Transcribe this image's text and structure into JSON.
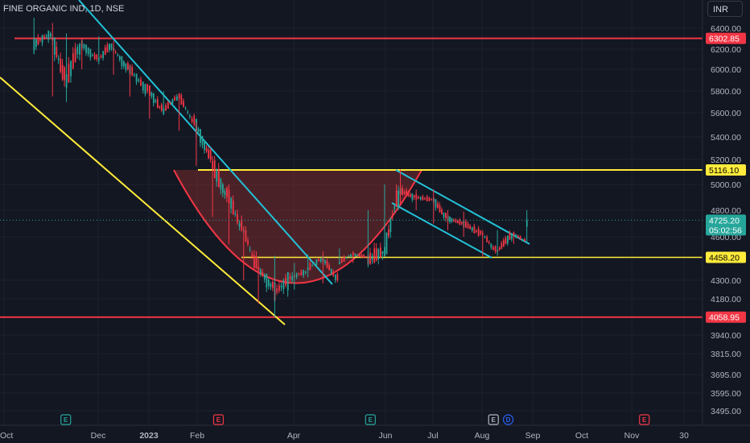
{
  "header": {
    "symbol": "FINE ORGANIC IND, 1D, NSE",
    "currency": "INR"
  },
  "colors": {
    "background": "#131722",
    "up_candle": "#26a69a",
    "down_candle": "#f23645",
    "red_line": "#f23645",
    "yellow_line": "#ffeb3b",
    "cyan_line": "#22c1d6",
    "cup_fill": "#7a2a2e",
    "current_price": "#26a69a"
  },
  "chart_data": {
    "type": "candlestick",
    "y_axis": {
      "scale": "log",
      "ticks": [
        "6400.00",
        "6200.00",
        "6000.00",
        "5800.00",
        "5600.00",
        "5400.00",
        "5200.00",
        "5000.00",
        "4800.00",
        "4600.00",
        "4300.00",
        "4180.00",
        "3940.00",
        "3815.00",
        "3695.00",
        "3595.00",
        "3495.00"
      ]
    },
    "x_axis": {
      "ticks": [
        "Oct",
        "Dec",
        "2023",
        "Feb",
        "Apr",
        "Jun",
        "Jul",
        "Aug",
        "Sep",
        "Oct",
        "Nov",
        "30"
      ],
      "bold": [
        "2023"
      ]
    },
    "price_tags": [
      {
        "label": "6302.85",
        "value": 6302.85,
        "color": "#f23645"
      },
      {
        "label": "5116.10",
        "value": 5116.1,
        "color": "#ffeb3b"
      },
      {
        "label": "4458.20",
        "value": 4458.2,
        "color": "#ffeb3b"
      },
      {
        "label": "4058.95",
        "value": 4058.95,
        "color": "#f23645"
      }
    ],
    "current_price": {
      "price": "4725.20",
      "countdown": "05:02:56",
      "value": 4725.2
    },
    "events": [
      {
        "label": "E",
        "type": "earnings-up",
        "date": "2022-11-10"
      },
      {
        "label": "E",
        "type": "earnings-down",
        "date": "2023-02-14"
      },
      {
        "label": "E",
        "type": "earnings-up",
        "date": "2023-05-22"
      },
      {
        "label": "E",
        "type": "earnings-neutral",
        "date": "2023-08-08"
      },
      {
        "label": "D",
        "type": "dividend",
        "date": "2023-08-17"
      },
      {
        "label": "E",
        "type": "earnings-down",
        "date": "2023-11-08"
      }
    ],
    "candles": [
      {
        "date": "2022-10-20",
        "o": 6250,
        "h": 6500,
        "l": 6150,
        "c": 6350
      },
      {
        "date": "2022-11-01",
        "o": 6300,
        "h": 6450,
        "l": 5750,
        "c": 5900
      },
      {
        "date": "2022-11-10",
        "o": 5900,
        "h": 6350,
        "l": 5700,
        "c": 6250
      },
      {
        "date": "2022-11-20",
        "o": 6250,
        "h": 6300,
        "l": 6000,
        "c": 6100
      },
      {
        "date": "2022-12-01",
        "o": 6100,
        "h": 6320,
        "l": 6050,
        "c": 6250
      },
      {
        "date": "2022-12-10",
        "o": 6200,
        "h": 6280,
        "l": 5950,
        "c": 6000
      },
      {
        "date": "2022-12-20",
        "o": 6000,
        "h": 6050,
        "l": 5750,
        "c": 5800
      },
      {
        "date": "2023-01-01",
        "o": 5800,
        "h": 5850,
        "l": 5550,
        "c": 5620
      },
      {
        "date": "2023-01-10",
        "o": 5620,
        "h": 5800,
        "l": 5580,
        "c": 5750
      },
      {
        "date": "2023-01-20",
        "o": 5750,
        "h": 5780,
        "l": 5450,
        "c": 5500
      },
      {
        "date": "2023-01-31",
        "o": 5500,
        "h": 5520,
        "l": 5150,
        "c": 5200
      },
      {
        "date": "2023-02-10",
        "o": 5150,
        "h": 5230,
        "l": 4750,
        "c": 4900
      },
      {
        "date": "2023-02-20",
        "o": 4900,
        "h": 5000,
        "l": 4550,
        "c": 4650
      },
      {
        "date": "2023-03-01",
        "o": 4650,
        "h": 4680,
        "l": 4300,
        "c": 4380
      },
      {
        "date": "2023-03-10",
        "o": 4380,
        "h": 4450,
        "l": 4150,
        "c": 4250
      },
      {
        "date": "2023-03-20",
        "o": 4220,
        "h": 4470,
        "l": 4060,
        "c": 4330
      },
      {
        "date": "2023-04-01",
        "o": 4330,
        "h": 4420,
        "l": 4240,
        "c": 4360
      },
      {
        "date": "2023-04-10",
        "o": 4380,
        "h": 4480,
        "l": 4320,
        "c": 4450
      },
      {
        "date": "2023-04-20",
        "o": 4450,
        "h": 4500,
        "l": 4280,
        "c": 4300
      },
      {
        "date": "2023-05-01",
        "o": 4420,
        "h": 4520,
        "l": 4410,
        "c": 4480
      },
      {
        "date": "2023-05-10",
        "o": 4480,
        "h": 4500,
        "l": 4420,
        "c": 4460
      },
      {
        "date": "2023-05-20",
        "o": 4440,
        "h": 4800,
        "l": 4390,
        "c": 4500
      },
      {
        "date": "2023-05-31",
        "o": 4500,
        "h": 5000,
        "l": 4490,
        "c": 4950
      },
      {
        "date": "2023-06-10",
        "o": 4950,
        "h": 5120,
        "l": 4850,
        "c": 4900
      },
      {
        "date": "2023-06-20",
        "o": 4900,
        "h": 4960,
        "l": 4800,
        "c": 4880
      },
      {
        "date": "2023-07-01",
        "o": 4880,
        "h": 4960,
        "l": 4700,
        "c": 4740
      },
      {
        "date": "2023-07-10",
        "o": 4740,
        "h": 4800,
        "l": 4650,
        "c": 4700
      },
      {
        "date": "2023-07-20",
        "o": 4700,
        "h": 4790,
        "l": 4600,
        "c": 4620
      },
      {
        "date": "2023-08-01",
        "o": 4620,
        "h": 4650,
        "l": 4460,
        "c": 4500
      },
      {
        "date": "2023-08-10",
        "o": 4500,
        "h": 4650,
        "l": 4470,
        "c": 4620
      },
      {
        "date": "2023-08-20",
        "o": 4620,
        "h": 4640,
        "l": 4550,
        "c": 4570
      },
      {
        "date": "2023-08-28",
        "o": 4570,
        "h": 4800,
        "l": 4560,
        "c": 4725
      }
    ]
  }
}
